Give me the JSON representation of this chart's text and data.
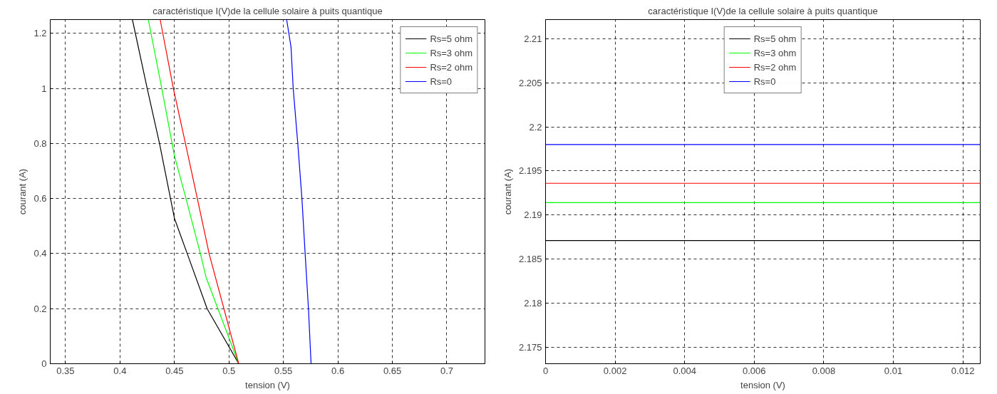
{
  "chart_data": [
    {
      "type": "line",
      "title": "caractéristique I(V)de la cellule solaire à puits quantique",
      "xlabel": "tension (V)",
      "ylabel": "courant (A)",
      "xlim": [
        0.336,
        0.735
      ],
      "ylim": [
        0,
        1.25
      ],
      "xticks": [
        0.35,
        0.4,
        0.45,
        0.5,
        0.55,
        0.6,
        0.65,
        0.7
      ],
      "yticks": [
        0,
        0.2,
        0.4,
        0.6,
        0.8,
        1,
        1.2
      ],
      "grid": true,
      "legend": "top right",
      "series": [
        {
          "name": "Rs=5 ohm",
          "color": "#000000",
          "x": [
            0.4114,
            0.425,
            0.4363,
            0.45,
            0.462,
            0.48,
            0.509
          ],
          "values": [
            1.25,
            1.0,
            0.8,
            0.528,
            0.397,
            0.2,
            0
          ]
        },
        {
          "name": "Rs=3 ohm",
          "color": "#00ff00",
          "x": [
            0.426,
            0.4384,
            0.45,
            0.4606,
            0.474,
            0.479,
            0.509
          ],
          "values": [
            1.25,
            1.0,
            0.755,
            0.6,
            0.397,
            0.314,
            0
          ]
        },
        {
          "name": "Rs=2 ohm",
          "color": "#ff0000",
          "x": [
            0.4369,
            0.449,
            0.4606,
            0.471,
            0.482,
            0.509
          ],
          "values": [
            1.25,
            1.0,
            0.791,
            0.6,
            0.397,
            0
          ]
        },
        {
          "name": "Rs=0",
          "color": "#0000ff",
          "x": [
            0.553,
            0.557,
            0.559,
            0.5632,
            0.567,
            0.57,
            0.573,
            0.5754
          ],
          "values": [
            1.25,
            1.15,
            1.0,
            0.8,
            0.6,
            0.397,
            0.2,
            0
          ]
        }
      ]
    },
    {
      "type": "line",
      "title": "caractéristique I(V)de la cellule solaire à puits quantique",
      "xlabel": "tension (V)",
      "ylabel": "courant (A)",
      "xlim": [
        0,
        0.0125
      ],
      "ylim": [
        2.1731,
        2.2122
      ],
      "xticks": [
        0,
        0.002,
        0.004,
        0.006,
        0.008,
        0.01,
        0.012
      ],
      "yticks": [
        2.175,
        2.18,
        2.185,
        2.19,
        2.195,
        2.2,
        2.205,
        2.21
      ],
      "grid": true,
      "legend": "top",
      "series": [
        {
          "name": "Rs=5 ohm",
          "color": "#000000",
          "x": [
            0,
            0.0125
          ],
          "values": [
            2.1871,
            2.1871
          ]
        },
        {
          "name": "Rs=3 ohm",
          "color": "#00ff00",
          "x": [
            0,
            0.0125
          ],
          "values": [
            2.1914,
            2.1914
          ]
        },
        {
          "name": "Rs=2 ohm",
          "color": "#ff0000",
          "x": [
            0,
            0.0125
          ],
          "values": [
            2.1936,
            2.1936
          ]
        },
        {
          "name": "Rs=0",
          "color": "#0000ff",
          "x": [
            0,
            0.0125
          ],
          "values": [
            2.198,
            2.198
          ]
        }
      ]
    }
  ]
}
